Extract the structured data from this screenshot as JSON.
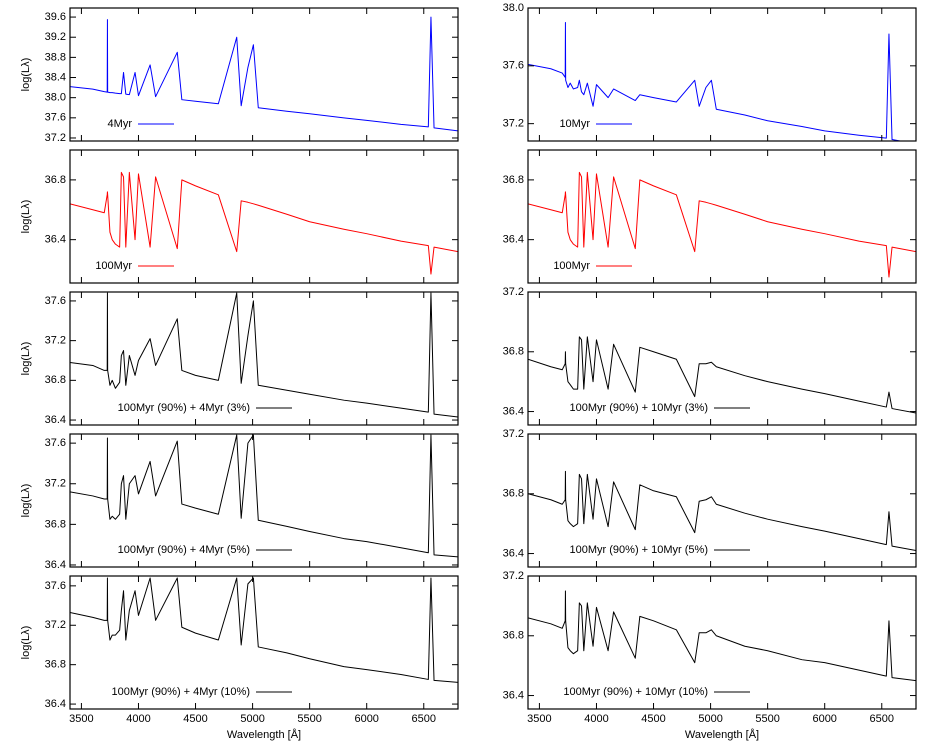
{
  "chart_data": [
    {
      "type": "line",
      "ylabel": "log(Lλ)",
      "xlim": [
        3400,
        6800
      ],
      "xticks": [
        3500,
        4000,
        4500,
        5000,
        5500,
        6000,
        6500
      ],
      "show_xticklabels": false,
      "ylim": [
        37.14,
        39.78
      ],
      "yticks": [
        37.2,
        37.6,
        {
          "value": 38,
          "label": "38.0"
        },
        38.4,
        38.8,
        39.2,
        39.6
      ],
      "legend": "lower left",
      "x": [
        3400,
        3600,
        3700,
        3726,
        3728,
        3730,
        3750,
        3770,
        3798,
        3835,
        3850,
        3869,
        3889,
        3920,
        3970,
        4000,
        4102,
        4150,
        4340,
        4380,
        4500,
        4700,
        4861,
        4900,
        4959,
        5007,
        5050,
        5300,
        5500,
        5800,
        6000,
        6300,
        6540,
        6563,
        6590,
        6800
      ],
      "series": [
        {
          "name": "4Myr",
          "color": "#0000ff",
          "values": [
            38.22,
            38.17,
            38.12,
            38.11,
            39.55,
            38.11,
            38.1,
            38.1,
            38.09,
            38.08,
            38.08,
            38.5,
            38.07,
            38.06,
            38.5,
            38.04,
            38.65,
            38.02,
            38.9,
            37.96,
            37.93,
            37.88,
            39.2,
            37.84,
            38.6,
            39.05,
            37.8,
            37.73,
            37.68,
            37.6,
            37.55,
            37.47,
            37.42,
            39.6,
            37.4,
            37.34
          ]
        }
      ]
    },
    {
      "type": "line",
      "xlim": [
        3400,
        6800
      ],
      "xticks": [
        3500,
        4000,
        4500,
        5000,
        5500,
        6000,
        6500
      ],
      "show_xticklabels": false,
      "ylim": [
        37.08,
        38.0
      ],
      "yticks": [
        37.2,
        37.6,
        {
          "value": 38,
          "label": "38.0"
        }
      ],
      "legend": "lower left",
      "x": [
        3400,
        3600,
        3700,
        3726,
        3728,
        3730,
        3750,
        3770,
        3798,
        3835,
        3850,
        3869,
        3889,
        3920,
        3970,
        4000,
        4102,
        4150,
        4340,
        4380,
        4500,
        4700,
        4861,
        4900,
        4959,
        5007,
        5050,
        5300,
        5500,
        5800,
        6000,
        6300,
        6540,
        6563,
        6590,
        6800
      ],
      "series": [
        {
          "name": "10Myr",
          "color": "#0000ff",
          "values": [
            37.61,
            37.58,
            37.55,
            37.52,
            37.9,
            37.5,
            37.45,
            37.48,
            37.44,
            37.45,
            37.5,
            37.42,
            37.4,
            37.48,
            37.32,
            37.47,
            37.38,
            37.44,
            37.36,
            37.4,
            37.38,
            37.35,
            37.5,
            37.32,
            37.45,
            37.5,
            37.3,
            37.26,
            37.22,
            37.18,
            37.15,
            37.12,
            37.1,
            37.82,
            37.09,
            37.06
          ]
        }
      ]
    },
    {
      "type": "line",
      "ylabel": "log(Lλ)",
      "xlim": [
        3400,
        6800
      ],
      "xticks": [
        3500,
        4000,
        4500,
        5000,
        5500,
        6000,
        6500
      ],
      "show_xticklabels": false,
      "ylim": [
        36.11,
        37.0
      ],
      "yticks": [
        36.4,
        36.8
      ],
      "legend": "lower left",
      "x": [
        3400,
        3600,
        3700,
        3726,
        3728,
        3730,
        3750,
        3770,
        3798,
        3835,
        3850,
        3869,
        3889,
        3920,
        3970,
        4000,
        4102,
        4150,
        4340,
        4380,
        4500,
        4700,
        4861,
        4900,
        4959,
        5007,
        5050,
        5300,
        5500,
        5800,
        6000,
        6300,
        6540,
        6563,
        6590,
        6800
      ],
      "series": [
        {
          "name": "100Myr",
          "color": "#ff0000",
          "values": [
            36.64,
            36.6,
            36.58,
            36.7,
            36.72,
            36.7,
            36.45,
            36.4,
            36.37,
            36.35,
            36.85,
            36.82,
            36.35,
            36.85,
            36.4,
            36.84,
            36.35,
            36.82,
            36.34,
            36.8,
            36.76,
            36.7,
            36.32,
            36.66,
            36.65,
            36.64,
            36.63,
            36.57,
            36.52,
            36.47,
            36.44,
            36.39,
            36.36,
            36.17,
            36.35,
            36.32
          ]
        }
      ]
    },
    {
      "type": "line",
      "xlim": [
        3400,
        6800
      ],
      "xticks": [
        3500,
        4000,
        4500,
        5000,
        5500,
        6000,
        6500
      ],
      "show_xticklabels": false,
      "ylim": [
        36.11,
        37.0
      ],
      "yticks": [
        36.4,
        36.8
      ],
      "legend": "lower left",
      "x": [
        3400,
        3600,
        3700,
        3726,
        3728,
        3730,
        3750,
        3770,
        3798,
        3835,
        3850,
        3869,
        3889,
        3920,
        3970,
        4000,
        4102,
        4150,
        4340,
        4380,
        4500,
        4700,
        4861,
        4900,
        4959,
        5007,
        5050,
        5300,
        5500,
        5800,
        6000,
        6300,
        6540,
        6563,
        6590,
        6800
      ],
      "series": [
        {
          "name": "100Myr",
          "color": "#ff0000",
          "values": [
            36.64,
            36.6,
            36.58,
            36.7,
            36.72,
            36.7,
            36.45,
            36.4,
            36.37,
            36.35,
            36.85,
            36.82,
            36.35,
            36.85,
            36.4,
            36.84,
            36.35,
            36.82,
            36.34,
            36.8,
            36.76,
            36.7,
            36.32,
            36.66,
            36.65,
            36.64,
            36.63,
            36.57,
            36.52,
            36.47,
            36.44,
            36.39,
            36.36,
            36.15,
            36.35,
            36.32
          ]
        }
      ]
    },
    {
      "type": "line",
      "ylabel": "log(Lλ)",
      "xlim": [
        3400,
        6800
      ],
      "xticks": [
        3500,
        4000,
        4500,
        5000,
        5500,
        6000,
        6500
      ],
      "show_xticklabels": false,
      "ylim": [
        36.35,
        37.69
      ],
      "yticks": [
        36.4,
        36.8,
        37.2,
        37.6
      ],
      "legend": "lower center",
      "x": [
        3400,
        3600,
        3700,
        3726,
        3728,
        3730,
        3750,
        3770,
        3798,
        3835,
        3850,
        3869,
        3889,
        3920,
        3970,
        4000,
        4102,
        4150,
        4340,
        4380,
        4500,
        4700,
        4861,
        4900,
        4959,
        5007,
        5050,
        5300,
        5500,
        5800,
        6000,
        6300,
        6540,
        6563,
        6590,
        6800
      ],
      "series": [
        {
          "name": "100Myr (90%) + 4Myr (3%)",
          "color": "#000000",
          "values": [
            36.98,
            36.95,
            36.9,
            36.9,
            37.68,
            36.9,
            36.75,
            36.8,
            36.72,
            36.78,
            37.05,
            37.1,
            36.75,
            37.05,
            36.85,
            37.0,
            37.22,
            36.95,
            37.42,
            36.9,
            36.85,
            36.8,
            37.68,
            36.77,
            37.25,
            37.6,
            36.75,
            36.7,
            36.66,
            36.6,
            36.57,
            36.52,
            36.48,
            37.68,
            36.46,
            36.43
          ]
        }
      ]
    },
    {
      "type": "line",
      "xlim": [
        3400,
        6800
      ],
      "xticks": [
        3500,
        4000,
        4500,
        5000,
        5500,
        6000,
        6500
      ],
      "show_xticklabels": false,
      "ylim": [
        36.31,
        37.2
      ],
      "yticks": [
        36.4,
        36.8,
        37.2
      ],
      "legend": "lower center",
      "x": [
        3400,
        3600,
        3700,
        3726,
        3728,
        3730,
        3750,
        3770,
        3798,
        3835,
        3850,
        3869,
        3889,
        3920,
        3970,
        4000,
        4102,
        4150,
        4340,
        4380,
        4500,
        4700,
        4861,
        4900,
        4959,
        5007,
        5050,
        5300,
        5500,
        5800,
        6000,
        6300,
        6540,
        6563,
        6590,
        6800
      ],
      "series": [
        {
          "name": "100Myr (90%) + 10Myr (3%)",
          "color": "#000000",
          "values": [
            36.75,
            36.7,
            36.68,
            36.72,
            36.8,
            36.72,
            36.6,
            36.58,
            36.55,
            36.55,
            36.9,
            36.88,
            36.55,
            36.9,
            36.6,
            36.88,
            36.55,
            36.85,
            36.53,
            36.83,
            36.8,
            36.75,
            36.5,
            36.72,
            36.72,
            36.73,
            36.7,
            36.64,
            36.6,
            36.55,
            36.52,
            36.47,
            36.43,
            36.53,
            36.42,
            36.39
          ]
        }
      ]
    },
    {
      "type": "line",
      "ylabel": "log(Lλ)",
      "xlim": [
        3400,
        6800
      ],
      "xticks": [
        3500,
        4000,
        4500,
        5000,
        5500,
        6000,
        6500
      ],
      "show_xticklabels": false,
      "ylim": [
        36.38,
        37.69
      ],
      "yticks": [
        36.4,
        36.8,
        37.2,
        37.6
      ],
      "legend": "lower center",
      "x": [
        3400,
        3600,
        3700,
        3726,
        3728,
        3730,
        3750,
        3770,
        3798,
        3835,
        3850,
        3869,
        3889,
        3920,
        3970,
        4000,
        4102,
        4150,
        4340,
        4380,
        4500,
        4700,
        4861,
        4900,
        4959,
        5007,
        5050,
        5300,
        5500,
        5800,
        6000,
        6300,
        6540,
        6563,
        6590,
        6800
      ],
      "series": [
        {
          "name": "100Myr (90%) + 4Myr (5%)",
          "color": "#000000",
          "values": [
            37.12,
            37.08,
            37.05,
            37.05,
            37.65,
            37.05,
            36.85,
            36.88,
            36.85,
            36.9,
            37.2,
            37.28,
            36.85,
            37.2,
            37.28,
            37.1,
            37.42,
            37.08,
            37.62,
            37.0,
            36.96,
            36.9,
            37.68,
            36.86,
            37.6,
            37.68,
            36.84,
            36.78,
            36.73,
            36.66,
            36.63,
            36.57,
            36.52,
            37.68,
            36.5,
            36.48
          ]
        }
      ]
    },
    {
      "type": "line",
      "xlim": [
        3400,
        6800
      ],
      "xticks": [
        3500,
        4000,
        4500,
        5000,
        5500,
        6000,
        6500
      ],
      "show_xticklabels": false,
      "ylim": [
        36.31,
        37.2
      ],
      "yticks": [
        36.4,
        36.8,
        37.2
      ],
      "legend": "lower center",
      "x": [
        3400,
        3600,
        3700,
        3726,
        3728,
        3730,
        3750,
        3770,
        3798,
        3835,
        3850,
        3869,
        3889,
        3920,
        3970,
        4000,
        4102,
        4150,
        4340,
        4380,
        4500,
        4700,
        4861,
        4900,
        4959,
        5007,
        5050,
        5300,
        5500,
        5800,
        6000,
        6300,
        6540,
        6563,
        6590,
        6800
      ],
      "series": [
        {
          "name": "100Myr (90%) + 10Myr (5%)",
          "color": "#000000",
          "values": [
            36.8,
            36.76,
            36.73,
            36.76,
            36.95,
            36.76,
            36.62,
            36.6,
            36.58,
            36.6,
            36.93,
            36.9,
            36.6,
            36.93,
            36.63,
            36.9,
            36.58,
            36.88,
            36.56,
            36.86,
            36.82,
            36.78,
            36.54,
            36.75,
            36.76,
            36.78,
            36.73,
            36.67,
            36.63,
            36.58,
            36.55,
            36.5,
            36.46,
            36.68,
            36.45,
            36.42
          ]
        }
      ]
    },
    {
      "type": "line",
      "ylabel": "log(Lλ)",
      "xlabel": "Wavelength [Å]",
      "xlim": [
        3400,
        6800
      ],
      "xticks": [
        3500,
        4000,
        4500,
        5000,
        5500,
        6000,
        6500
      ],
      "show_xticklabels": true,
      "ylim": [
        36.35,
        37.7
      ],
      "yticks": [
        36.4,
        36.8,
        37.2,
        37.6
      ],
      "legend": "lower center",
      "x": [
        3400,
        3600,
        3700,
        3726,
        3728,
        3730,
        3750,
        3770,
        3798,
        3835,
        3850,
        3869,
        3889,
        3920,
        3970,
        4000,
        4102,
        4150,
        4340,
        4380,
        4500,
        4700,
        4861,
        4900,
        4959,
        5007,
        5050,
        5300,
        5500,
        5800,
        6000,
        6300,
        6540,
        6563,
        6590,
        6800
      ],
      "series": [
        {
          "name": "100Myr (90%) + 4Myr (10%)",
          "color": "#000000",
          "values": [
            37.33,
            37.28,
            37.25,
            37.25,
            37.68,
            37.25,
            37.05,
            37.1,
            37.1,
            37.15,
            37.35,
            37.55,
            37.05,
            37.35,
            37.55,
            37.3,
            37.68,
            37.25,
            37.68,
            37.18,
            37.12,
            37.05,
            37.68,
            37.0,
            37.62,
            37.68,
            36.98,
            36.92,
            36.86,
            36.78,
            36.75,
            36.7,
            36.65,
            37.68,
            36.64,
            36.62
          ]
        }
      ]
    },
    {
      "type": "line",
      "xlabel": "Wavelength [Å]",
      "xlim": [
        3400,
        6800
      ],
      "xticks": [
        3500,
        4000,
        4500,
        5000,
        5500,
        6000,
        6500
      ],
      "show_xticklabels": true,
      "ylim": [
        36.31,
        37.2
      ],
      "yticks": [
        36.4,
        36.8,
        37.2
      ],
      "legend": "lower center",
      "x": [
        3400,
        3600,
        3700,
        3726,
        3728,
        3730,
        3750,
        3770,
        3798,
        3835,
        3850,
        3869,
        3889,
        3920,
        3970,
        4000,
        4102,
        4150,
        4340,
        4380,
        4500,
        4700,
        4861,
        4900,
        4959,
        5007,
        5050,
        5300,
        5500,
        5800,
        6000,
        6300,
        6540,
        6563,
        6590,
        6800
      ],
      "series": [
        {
          "name": "100Myr (90%) + 10Myr (10%)",
          "color": "#000000",
          "values": [
            36.92,
            36.88,
            36.85,
            36.9,
            37.1,
            36.9,
            36.72,
            36.7,
            36.68,
            36.7,
            37.02,
            37.0,
            36.7,
            37.02,
            36.73,
            36.99,
            36.7,
            36.96,
            36.65,
            36.93,
            36.9,
            36.84,
            36.62,
            36.82,
            36.82,
            36.84,
            36.8,
            36.73,
            36.7,
            36.64,
            36.62,
            36.57,
            36.53,
            36.9,
            36.52,
            36.5
          ]
        }
      ]
    }
  ]
}
